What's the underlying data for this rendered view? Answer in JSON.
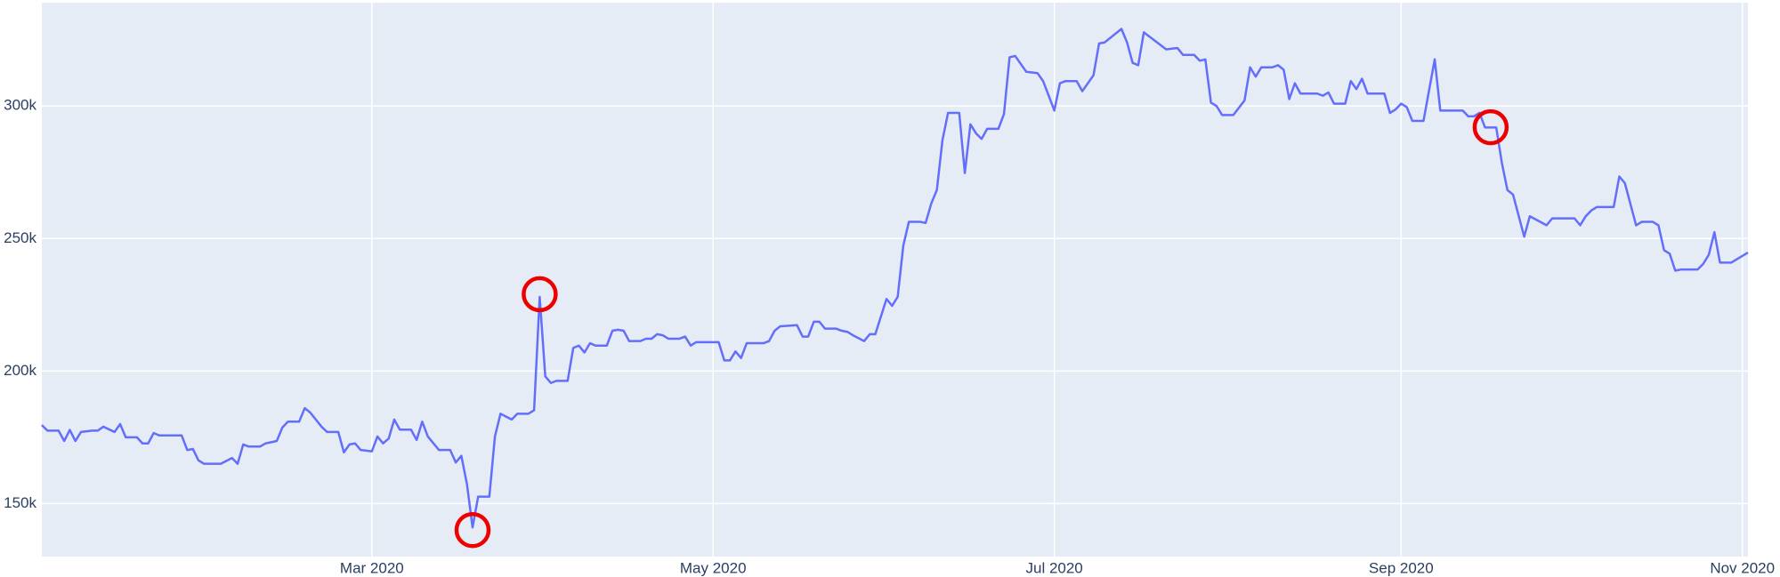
{
  "chart_data": {
    "type": "line",
    "x": [
      "2020-01-02",
      "2020-01-03",
      "2020-01-05",
      "2020-01-06",
      "2020-01-07",
      "2020-01-08",
      "2020-01-09",
      "2020-01-11",
      "2020-01-12",
      "2020-01-13",
      "2020-01-15",
      "2020-01-16",
      "2020-01-17",
      "2020-01-19",
      "2020-01-20",
      "2020-01-21",
      "2020-01-22",
      "2020-01-23",
      "2020-01-27",
      "2020-01-28",
      "2020-01-29",
      "2020-01-30",
      "2020-01-31",
      "2020-02-03",
      "2020-02-05",
      "2020-02-06",
      "2020-02-07",
      "2020-02-08",
      "2020-02-10",
      "2020-02-11",
      "2020-02-13",
      "2020-02-14",
      "2020-02-15",
      "2020-02-17",
      "2020-02-18",
      "2020-02-19",
      "2020-02-21",
      "2020-02-22",
      "2020-02-24",
      "2020-02-25",
      "2020-02-26",
      "2020-02-27",
      "2020-02-28",
      "2020-03-01",
      "2020-03-02",
      "2020-03-03",
      "2020-03-04",
      "2020-03-05",
      "2020-03-06",
      "2020-03-08",
      "2020-03-09",
      "2020-03-10",
      "2020-03-11",
      "2020-03-13",
      "2020-03-15",
      "2020-03-16",
      "2020-03-17",
      "2020-03-18",
      "2020-03-19",
      "2020-03-20",
      "2020-03-22",
      "2020-03-23",
      "2020-03-24",
      "2020-03-26",
      "2020-03-27",
      "2020-03-29",
      "2020-03-30",
      "2020-03-31",
      "2020-04-01",
      "2020-04-02",
      "2020-04-03",
      "2020-04-05",
      "2020-04-06",
      "2020-04-07",
      "2020-04-08",
      "2020-04-09",
      "2020-04-10",
      "2020-04-12",
      "2020-04-13",
      "2020-04-14",
      "2020-04-15",
      "2020-04-16",
      "2020-04-18",
      "2020-04-19",
      "2020-04-20",
      "2020-04-21",
      "2020-04-22",
      "2020-04-23",
      "2020-04-25",
      "2020-04-26",
      "2020-04-27",
      "2020-04-28",
      "2020-05-02",
      "2020-05-03",
      "2020-05-04",
      "2020-05-05",
      "2020-05-06",
      "2020-05-07",
      "2020-05-10",
      "2020-05-11",
      "2020-05-12",
      "2020-05-13",
      "2020-05-16",
      "2020-05-17",
      "2020-05-18",
      "2020-05-19",
      "2020-05-20",
      "2020-05-21",
      "2020-05-23",
      "2020-05-24",
      "2020-05-25",
      "2020-05-26",
      "2020-05-28",
      "2020-05-29",
      "2020-05-30",
      "2020-06-01",
      "2020-06-02",
      "2020-06-03",
      "2020-06-04",
      "2020-06-05",
      "2020-06-07",
      "2020-06-08",
      "2020-06-09",
      "2020-06-10",
      "2020-06-11",
      "2020-06-12",
      "2020-06-14",
      "2020-06-15",
      "2020-06-16",
      "2020-06-17",
      "2020-06-18",
      "2020-06-19",
      "2020-06-21",
      "2020-06-22",
      "2020-06-23",
      "2020-06-24",
      "2020-06-26",
      "2020-06-28",
      "2020-06-29",
      "2020-06-30",
      "2020-07-01",
      "2020-07-02",
      "2020-07-03",
      "2020-07-05",
      "2020-07-06",
      "2020-07-08",
      "2020-07-09",
      "2020-07-10",
      "2020-07-13",
      "2020-07-14",
      "2020-07-15",
      "2020-07-16",
      "2020-07-17",
      "2020-07-21",
      "2020-07-23",
      "2020-07-24",
      "2020-07-26",
      "2020-07-27",
      "2020-07-28",
      "2020-07-29",
      "2020-07-30",
      "2020-07-31",
      "2020-08-02",
      "2020-08-04",
      "2020-08-05",
      "2020-08-06",
      "2020-08-07",
      "2020-08-09",
      "2020-08-10",
      "2020-08-11",
      "2020-08-12",
      "2020-08-13",
      "2020-08-14",
      "2020-08-17",
      "2020-08-18",
      "2020-08-19",
      "2020-08-20",
      "2020-08-22",
      "2020-08-23",
      "2020-08-24",
      "2020-08-25",
      "2020-08-26",
      "2020-08-29",
      "2020-08-30",
      "2020-08-31",
      "2020-09-01",
      "2020-09-02",
      "2020-09-03",
      "2020-09-05",
      "2020-09-06",
      "2020-09-07",
      "2020-09-08",
      "2020-09-12",
      "2020-09-13",
      "2020-09-14",
      "2020-09-15",
      "2020-09-16",
      "2020-09-18",
      "2020-09-19",
      "2020-09-20",
      "2020-09-21",
      "2020-09-23",
      "2020-09-24",
      "2020-09-27",
      "2020-09-28",
      "2020-10-02",
      "2020-10-03",
      "2020-10-04",
      "2020-10-05",
      "2020-10-06",
      "2020-10-09",
      "2020-10-10",
      "2020-10-11",
      "2020-10-13",
      "2020-10-14",
      "2020-10-16",
      "2020-10-17",
      "2020-10-18",
      "2020-10-19",
      "2020-10-20",
      "2020-10-21",
      "2020-10-24",
      "2020-10-25",
      "2020-10-26",
      "2020-10-27",
      "2020-10-28",
      "2020-10-30",
      "2020-11-02"
    ],
    "values": [
      179600,
      177500,
      177500,
      173600,
      177800,
      173600,
      177000,
      177500,
      177500,
      179000,
      177000,
      180000,
      175000,
      175000,
      172700,
      172700,
      176600,
      175700,
      175700,
      170200,
      170600,
      166300,
      165000,
      165000,
      167200,
      165000,
      172300,
      171500,
      171500,
      172700,
      173600,
      178700,
      180900,
      180900,
      186000,
      184300,
      179000,
      177000,
      177000,
      169300,
      172300,
      172700,
      170200,
      169700,
      175300,
      172700,
      174500,
      181700,
      177900,
      177900,
      174000,
      180900,
      175300,
      170200,
      170200,
      165500,
      168000,
      157300,
      141000,
      152600,
      152600,
      175300,
      183900,
      181700,
      183900,
      183900,
      185200,
      228000,
      198000,
      195500,
      196300,
      196300,
      208700,
      209600,
      207000,
      210500,
      209600,
      209600,
      215200,
      215600,
      215200,
      211300,
      211300,
      212200,
      212200,
      213900,
      213500,
      212200,
      212200,
      213000,
      209600,
      210900,
      210900,
      204000,
      204000,
      207400,
      204900,
      210500,
      210500,
      211300,
      215200,
      216900,
      217300,
      213000,
      213000,
      218600,
      218600,
      216000,
      216000,
      215200,
      214800,
      213500,
      211300,
      213900,
      213900,
      227200,
      224600,
      228000,
      247300,
      256300,
      256300,
      255900,
      263200,
      268300,
      287100,
      297400,
      297400,
      274700,
      293100,
      289700,
      287600,
      291400,
      291400,
      297000,
      318400,
      318900,
      312900,
      312400,
      309400,
      303900,
      298300,
      308600,
      309400,
      309400,
      305600,
      311600,
      323600,
      324000,
      329100,
      324000,
      316300,
      315400,
      327800,
      321400,
      321900,
      319300,
      319300,
      317100,
      317600,
      301300,
      300000,
      296600,
      296600,
      302100,
      314600,
      311100,
      314600,
      314600,
      315400,
      313700,
      302600,
      308600,
      304700,
      304700,
      303900,
      305100,
      300900,
      300900,
      309400,
      306400,
      310300,
      304700,
      304700,
      297400,
      298700,
      300900,
      299600,
      294400,
      294400,
      306000,
      317600,
      298300,
      298300,
      296100,
      296100,
      297400,
      291900,
      291900,
      278600,
      268300,
      266600,
      250700,
      258400,
      255000,
      257600,
      257600,
      255000,
      258400,
      260600,
      261900,
      261900,
      273400,
      270900,
      255000,
      256300,
      256300,
      255000,
      245600,
      244300,
      237900,
      238300,
      238300,
      240400,
      243900,
      252400,
      240900,
      240900,
      244700
    ],
    "color": "#636efa",
    "xlim": [
      "2020-01-02",
      "2020-11-02"
    ],
    "xticks": [
      {
        "value": "2020-03-01",
        "label": "Mar 2020"
      },
      {
        "value": "2020-05-01",
        "label": "May 2020"
      },
      {
        "value": "2020-07-01",
        "label": "Jul 2020"
      },
      {
        "value": "2020-09-01",
        "label": "Sep 2020"
      },
      {
        "value": "2020-11-01",
        "label": "Nov 2020"
      }
    ],
    "ylim": [
      130000,
      339000
    ],
    "yticks": [
      {
        "value": 150000,
        "label": "150k"
      },
      {
        "value": 200000,
        "label": "200k"
      },
      {
        "value": 250000,
        "label": "250k"
      },
      {
        "value": 300000,
        "label": "300k"
      }
    ],
    "grid": true,
    "highlights": [
      {
        "x": "2020-03-19",
        "y": 140000
      },
      {
        "x": "2020-03-31",
        "y": 229000
      },
      {
        "x": "2020-09-17",
        "y": 292000
      }
    ],
    "highlight_color": "#ee0000"
  }
}
